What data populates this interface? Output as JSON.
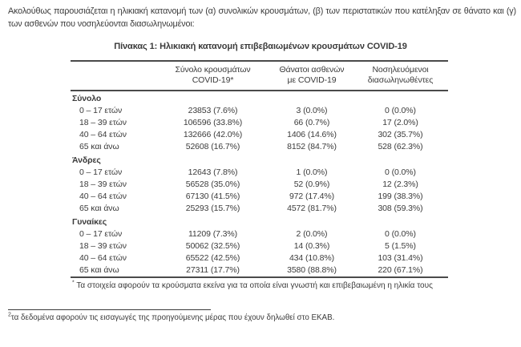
{
  "intro": {
    "text": "Ακολούθως παρουσιάζεται η ηλικιακή κατανομή των (α) συνολικών κρουσμάτων, (β) των περιστατικών που κατέληξαν σε θάνατο και (γ) των ασθενών που νοσηλεύονται διασωληνωμένοι:"
  },
  "table": {
    "title": "Πίνακας 1: Ηλικιακή κατανομή επιβεβαιωμένων κρουσμάτων COVID-19",
    "columns": [
      "Σύνολο κρουσμάτων COVID-19*",
      "Θάνατοι ασθενών με COVID-19",
      "Νοσηλευόμενοι διασωληνωθέντες"
    ],
    "sections": [
      {
        "label": "Σύνολο",
        "rows": [
          {
            "age": "0 – 17 ετών",
            "values": [
              "23853 (7.6%)",
              "3 (0.0%)",
              "0 (0.0%)"
            ]
          },
          {
            "age": "18 – 39 ετών",
            "values": [
              "106596 (33.8%)",
              "66 (0.7%)",
              "17 (2.0%)"
            ]
          },
          {
            "age": "40 – 64 ετών",
            "values": [
              "132666 (42.0%)",
              "1406 (14.6%)",
              "302 (35.7%)"
            ]
          },
          {
            "age": "65 και άνω",
            "values": [
              "52608 (16.7%)",
              "8152 (84.7%)",
              "528 (62.3%)"
            ]
          }
        ]
      },
      {
        "label": "Άνδρες",
        "rows": [
          {
            "age": "0 – 17 ετών",
            "values": [
              "12643 (7.8%)",
              "1 (0.0%)",
              "0 (0.0%)"
            ]
          },
          {
            "age": "18 – 39 ετών",
            "values": [
              "56528 (35.0%)",
              "52 (0.9%)",
              "12 (2.3%)"
            ]
          },
          {
            "age": "40 – 64 ετών",
            "values": [
              "67130 (41.5%)",
              "972 (17.4%)",
              "199 (38.3%)"
            ]
          },
          {
            "age": "65 και άνω",
            "values": [
              "25293 (15.7%)",
              "4572 (81.7%)",
              "308 (59.3%)"
            ]
          }
        ]
      },
      {
        "label": "Γυναίκες",
        "rows": [
          {
            "age": "0 – 17 ετών",
            "values": [
              "11209 (7.3%)",
              "2 (0.0%)",
              "0 (0.0%)"
            ]
          },
          {
            "age": "18 – 39 ετών",
            "values": [
              "50062 (32.5%)",
              "14 (0.3%)",
              "5 (1.5%)"
            ]
          },
          {
            "age": "40 – 64 ετών",
            "values": [
              "65522 (42.5%)",
              "434 (10.8%)",
              "103 (31.4%)"
            ]
          },
          {
            "age": "65 και άνω",
            "values": [
              "27311 (17.7%)",
              "3580 (88.8%)",
              "220 (67.1%)"
            ]
          }
        ]
      }
    ],
    "footnote_marker": "*",
    "footnote": "Τα στοιχεία αφορούν τα κρούσματα εκείνα για τα οποία είναι γνωστή και επιβεβαιωμένη η ηλικία τους"
  },
  "page_footnote": {
    "marker": "2",
    "text": "τα δεδομένα αφορούν τις εισαγωγές της προηγούμενης μέρας που έχουν δηλωθεί στο ΕΚΑΒ."
  },
  "colors": {
    "text": "#3b3b3b",
    "border": "#4a4a4a",
    "background": "#ffffff"
  }
}
